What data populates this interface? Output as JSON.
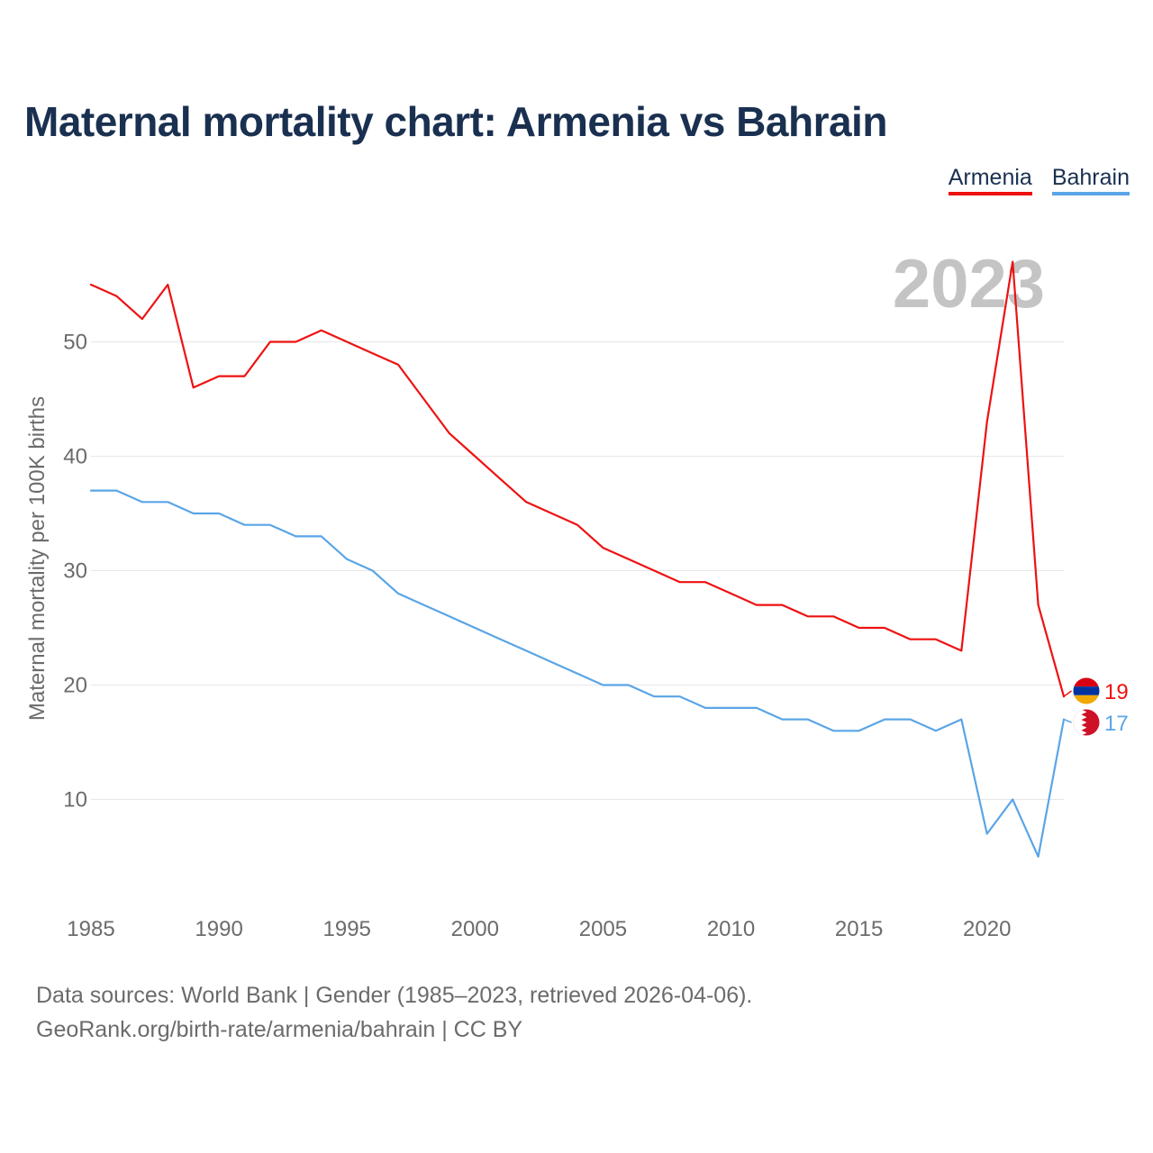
{
  "title": "Maternal mortality chart: Armenia vs Bahrain",
  "legend": {
    "armenia": "Armenia",
    "bahrain": "Bahrain"
  },
  "footer": {
    "line1": "Data sources: World Bank | Gender (1985–2023, retrieved 2026-04-06).",
    "line2": "GeoRank.org/birth-rate/armenia/bahrain | CC BY"
  },
  "chart_data": {
    "type": "line",
    "title": "Maternal mortality chart: Armenia vs Bahrain",
    "watermark_year": "2023",
    "xlabel": "",
    "ylabel": "Maternal mortality per 100K births",
    "xlim": [
      1985,
      2023
    ],
    "ylim": [
      0,
      60
    ],
    "x_ticks": [
      1985,
      1990,
      1995,
      2000,
      2005,
      2010,
      2015,
      2020
    ],
    "y_ticks": [
      10,
      20,
      30,
      40,
      50
    ],
    "grid": true,
    "legend_position": "top-right",
    "x": [
      1985,
      1986,
      1987,
      1988,
      1989,
      1990,
      1991,
      1992,
      1993,
      1994,
      1995,
      1996,
      1997,
      1998,
      1999,
      2000,
      2001,
      2002,
      2003,
      2004,
      2005,
      2006,
      2007,
      2008,
      2009,
      2010,
      2011,
      2012,
      2013,
      2014,
      2015,
      2016,
      2017,
      2018,
      2019,
      2020,
      2021,
      2022,
      2023
    ],
    "series": [
      {
        "name": "Armenia",
        "color": "#ee1111",
        "values": [
          55,
          54,
          52,
          55,
          46,
          47,
          47,
          50,
          50,
          51,
          50,
          49,
          48,
          45,
          42,
          40,
          38,
          36,
          35,
          34,
          32,
          31,
          30,
          29,
          29,
          28,
          27,
          27,
          26,
          26,
          25,
          25,
          24,
          24,
          23,
          43,
          57,
          27,
          19
        ],
        "end_label": "19"
      },
      {
        "name": "Bahrain",
        "color": "#5aa5e6",
        "values": [
          37,
          37,
          36,
          36,
          35,
          35,
          34,
          34,
          33,
          33,
          31,
          30,
          28,
          27,
          26,
          25,
          24,
          23,
          22,
          21,
          20,
          20,
          19,
          19,
          18,
          18,
          18,
          17,
          17,
          16,
          16,
          17,
          17,
          16,
          17,
          7,
          10,
          5,
          17
        ],
        "end_label": "17"
      }
    ]
  }
}
